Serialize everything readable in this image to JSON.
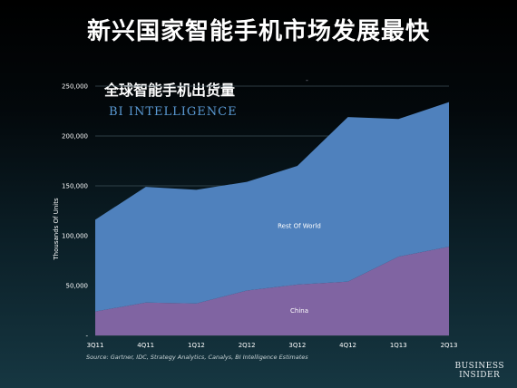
{
  "headline": "新兴国家智能手机市场发展最快",
  "chart_title": "全球智能手机出货量",
  "watermark": "BI INTELLIGENCE",
  "source": "Source: Gartner, IDC, Strategy Analytics, Canalys, BI Intelligence Estimates",
  "brand": {
    "line1": "BUSINESS",
    "line2": "INSIDER"
  },
  "colors": {
    "rest_of_world": "#4f81bd",
    "china": "#8064a2",
    "axis_text": "#ffffff"
  },
  "chart_data": {
    "type": "area",
    "stacked": true,
    "title": "全球智能手机出货量",
    "xlabel": "",
    "ylabel": "Thousands Of Units",
    "categories": [
      "3Q11",
      "4Q11",
      "1Q12",
      "2Q12",
      "3Q12",
      "4Q12",
      "1Q13",
      "2Q13"
    ],
    "ylim": [
      0,
      250000
    ],
    "yticks": [
      0,
      50000,
      100000,
      150000,
      200000,
      250000
    ],
    "ytick_labels": [
      "-",
      "50,000",
      "100,000",
      "150,000",
      "200,000",
      "250,000"
    ],
    "grid": true,
    "series": [
      {
        "name": "China",
        "values": [
          24000,
          33000,
          32000,
          45000,
          51000,
          54000,
          79000,
          89000
        ],
        "color": "#8064a2"
      },
      {
        "name": "Rest Of World",
        "values": [
          92000,
          116000,
          114000,
          109000,
          119000,
          165000,
          138000,
          145000
        ],
        "color": "#4f81bd"
      }
    ]
  }
}
